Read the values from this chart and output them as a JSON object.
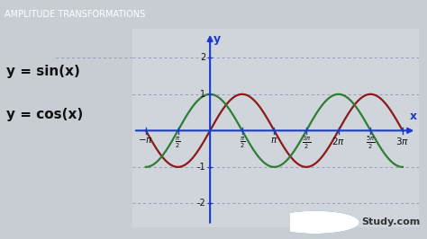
{
  "title": "AMPLITUDE TRANSFORMATIONS",
  "title_fontsize": 7,
  "bg_color": "#c8cdd4",
  "plot_bg_color": "#d0d5dc",
  "title_bg_color": "#9aa0a8",
  "sin_color": "#8B1a1a",
  "cos_color": "#2e7d32",
  "axis_color": "#1a3acc",
  "grid_color": "#9999bb",
  "label_sin": "y = sin(x)",
  "label_cos": "y = cos(x)",
  "label_fontsize": 12,
  "watermark": "Study.com",
  "xlim_left": -3.8,
  "xlim_right": 10.2,
  "ylim_bottom": -2.65,
  "ylim_top": 2.8,
  "xstart": -3.14159265,
  "xend": 9.42477796
}
